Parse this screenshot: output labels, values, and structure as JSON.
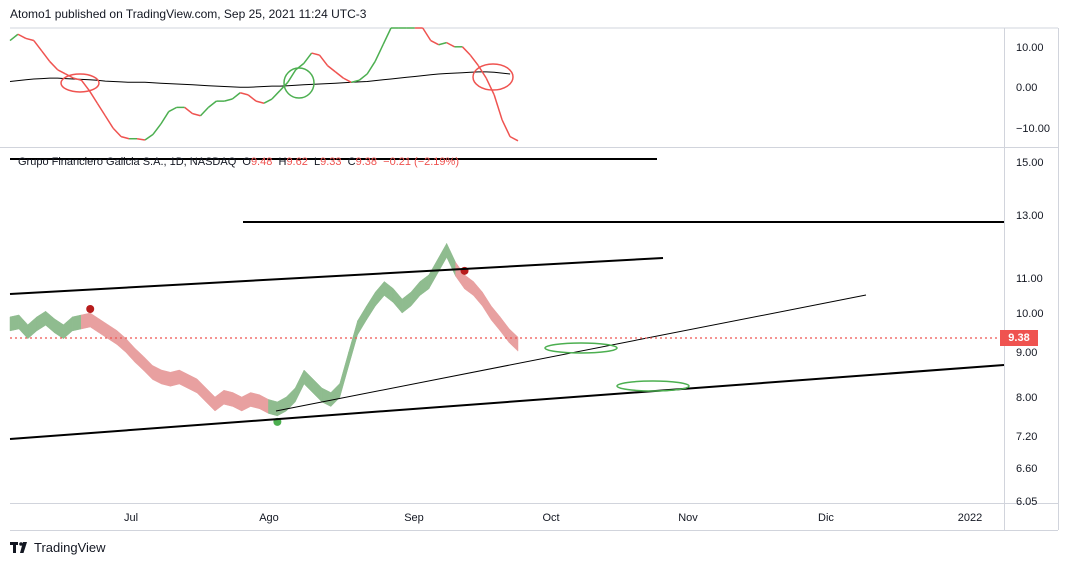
{
  "attribution": "Atomo1 published on TradingView.com, Sep 25, 2021 11:24 UTC-3",
  "legend": {
    "symbol": "Grupo Financiero Galicia S.A., 1D, NASDAQ",
    "open_label": "O",
    "open": "9.48",
    "high_label": "H",
    "high": "9.62",
    "low_label": "L",
    "low": "9.33",
    "close_label": "C",
    "close": "9.38",
    "change": "−0.21 (−2.19%)"
  },
  "last_price": "9.38",
  "footer": {
    "brand": "TradingView"
  },
  "colors": {
    "up": "#8fbc8f",
    "down": "#e8a0a0",
    "osc_up": "#4caf50",
    "osc_down": "#ef5350",
    "price_line": "#ef5350"
  },
  "chart_data": [
    {
      "type": "line",
      "panel": "oscillator",
      "y_ticks": [
        "10.00",
        "0.00",
        "−10.00"
      ],
      "ylim": [
        -14,
        14
      ],
      "series": [
        {
          "values": [
            11,
            12.5,
            11.5,
            11,
            8.5,
            6,
            4,
            3,
            2,
            1.5,
            -1,
            -4,
            -7,
            -10,
            -12,
            -12.5,
            -12.5,
            -12.8,
            -11.5,
            -9,
            -6,
            -5,
            -5,
            -6.5,
            -7,
            -5,
            -3.5,
            -3.5,
            -3,
            -1.5,
            -2,
            -3.5,
            -4,
            -3,
            -1,
            1,
            4,
            5.5,
            8,
            7.5,
            5,
            3.5,
            2,
            1,
            1.5,
            3,
            6,
            10,
            14,
            15.5,
            15.5,
            17,
            14,
            11,
            10,
            10.5,
            9.5,
            9.5,
            7.5,
            5,
            2,
            -2,
            -8,
            -12,
            -13
          ]
        },
        {
          "values": [
            1.2,
            1.4,
            1.6,
            1.8,
            1.9,
            2,
            2,
            1.9,
            1.8,
            1.7,
            1.6,
            1.5,
            1.3,
            1.2,
            1.1,
            1,
            1,
            1,
            0.9,
            0.8,
            0.7,
            0.6,
            0.5,
            0.4,
            0.3,
            0.2,
            0.1,
            0,
            -0.1,
            -0.2,
            -0.2,
            -0.1,
            0,
            0.1,
            0.1,
            0.2,
            0.3,
            0.4,
            0.5,
            0.6,
            0.7,
            0.8,
            0.9,
            1,
            1.1,
            1.2,
            1.4,
            1.6,
            1.8,
            2,
            2.2,
            2.4,
            2.6,
            2.8,
            3,
            3.1,
            3.2,
            3.3,
            3.4,
            3.5,
            3.5,
            3.4,
            3.2,
            3
          ]
        }
      ]
    },
    {
      "type": "area",
      "panel": "price",
      "y_ticks": [
        "15.00",
        "13.00",
        "11.00",
        "10.00",
        "9.00",
        "8.00",
        "7.20",
        "6.60",
        "6.05"
      ],
      "x_ticks": [
        "Jul",
        "Ago",
        "Sep",
        "Oct",
        "Nov",
        "Dic",
        "2022"
      ],
      "values": [
        9.9,
        9.95,
        9.7,
        9.9,
        10.05,
        9.85,
        9.7,
        9.9,
        9.95,
        10.0,
        9.85,
        9.7,
        9.55,
        9.35,
        9.1,
        8.9,
        8.7,
        8.6,
        8.55,
        8.6,
        8.5,
        8.4,
        8.2,
        8.0,
        8.15,
        8.1,
        8.0,
        8.1,
        8.05,
        7.95,
        7.9,
        8.0,
        8.2,
        8.6,
        8.4,
        8.2,
        8.1,
        8.3,
        9.0,
        9.8,
        10.2,
        10.6,
        10.9,
        10.7,
        10.4,
        10.6,
        10.9,
        11.1,
        11.6,
        12.1,
        11.5,
        11.1,
        10.9,
        10.6,
        10.2,
        9.9,
        9.6,
        9.38
      ],
      "signal_marks": [
        {
          "x_index": 9,
          "kind": "sell"
        },
        {
          "x_index": 30,
          "kind": "buy"
        },
        {
          "x_index": 51,
          "kind": "sell"
        }
      ]
    }
  ]
}
